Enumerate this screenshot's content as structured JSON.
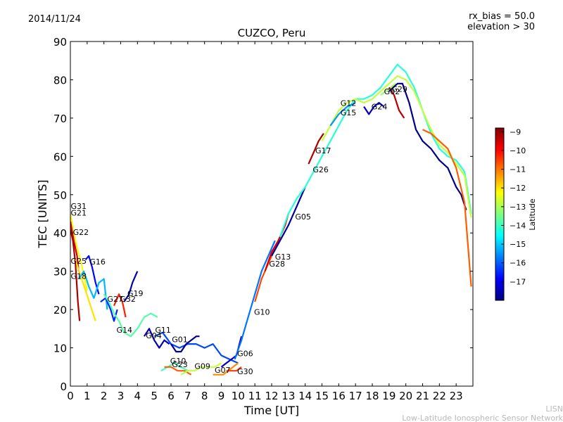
{
  "header": {
    "date": "2014/11/24",
    "title": "CUZCO, Peru",
    "info_line1": "rx_bias = 50.0",
    "info_line2": "elevation > 30"
  },
  "footer": {
    "short": "LISN",
    "long": "Low-Latitude Ionospheric Sensor Network"
  },
  "chart_data": {
    "type": "line",
    "title": "CUZCO, Peru",
    "xlabel": "Time [UT]",
    "ylabel": "TEC [UNITS]",
    "xlim": [
      0,
      24
    ],
    "ylim": [
      0,
      90
    ],
    "xticks": [
      "0",
      "1",
      "2",
      "3",
      "4",
      "5",
      "6",
      "7",
      "8",
      "9",
      "10",
      "11",
      "12",
      "13",
      "14",
      "15",
      "16",
      "17",
      "18",
      "19",
      "20",
      "21",
      "22",
      "23"
    ],
    "yticks": [
      "0",
      "10",
      "20",
      "30",
      "40",
      "50",
      "60",
      "70",
      "80",
      "90"
    ],
    "grid": false,
    "colorbar": {
      "label": "Latitude",
      "ticks": [
        "-9",
        "-10",
        "-11",
        "-12",
        "-13",
        "-14",
        "-15",
        "-16",
        "-17"
      ],
      "range": [
        -18,
        -8.8
      ],
      "colors": [
        "#00007f",
        "#0000ff",
        "#007fff",
        "#00ffff",
        "#7fff7f",
        "#ffff00",
        "#ff7f00",
        "#ff0000",
        "#7f0000"
      ]
    },
    "series": [
      {
        "name": "G31",
        "label_x": 0.02,
        "label_y": 46.3,
        "lat": -12.2,
        "x": [
          0.0,
          0.2,
          0.4,
          0.6,
          0.8,
          1.0
        ],
        "y": [
          45,
          40,
          36,
          33,
          29,
          25
        ]
      },
      {
        "name": "G21",
        "label_x": 0.02,
        "label_y": 44.5,
        "lat": -9.5,
        "x": [
          0.0,
          0.2,
          0.4,
          0.5
        ],
        "y": [
          43,
          38,
          34,
          30
        ]
      },
      {
        "name": "G22",
        "label_x": 0.15,
        "label_y": 39.5,
        "lat": -9.2,
        "x": [
          0.0,
          0.15,
          0.3,
          0.45,
          0.55
        ],
        "y": [
          41,
          38,
          32,
          22,
          17
        ]
      },
      {
        "name": "G25",
        "label_x": 0.02,
        "label_y": 32.0,
        "lat": -12.0,
        "x": [
          0.3,
          0.6,
          0.9,
          1.2,
          1.5
        ],
        "y": [
          33,
          29,
          25,
          21,
          17
        ]
      },
      {
        "name": "G16",
        "label_x": 1.15,
        "label_y": 31.8,
        "lat": -16.8,
        "x": [
          0.9,
          1.1,
          1.3,
          1.5,
          1.7
        ],
        "y": [
          33,
          34,
          31,
          27,
          24
        ]
      },
      {
        "name": "G18",
        "label_x": 0.02,
        "label_y": 28.0,
        "lat": -15.2,
        "x": [
          0.5,
          0.8,
          1.1,
          1.4,
          1.7,
          2.0,
          2.2
        ],
        "y": [
          28,
          30,
          26,
          23,
          27,
          28,
          20
        ]
      },
      {
        "name": "G27",
        "label_x": 2.2,
        "label_y": 22.0,
        "lat": -16.5,
        "x": [
          1.8,
          2.1,
          2.4,
          2.6,
          2.8
        ],
        "y": [
          22,
          23,
          20,
          17,
          20
        ]
      },
      {
        "name": "G32",
        "label_x": 2.95,
        "label_y": 22.0,
        "lat": -10.2,
        "x": [
          2.6,
          2.9,
          3.1,
          3.3
        ],
        "y": [
          21,
          24,
          22,
          18
        ]
      },
      {
        "name": "G19",
        "label_x": 3.4,
        "label_y": 23.5,
        "lat": -17.6,
        "x": [
          3.2,
          3.5,
          3.7,
          3.9,
          4.0
        ],
        "y": [
          22,
          24,
          27,
          29,
          30
        ]
      },
      {
        "name": "G14",
        "label_x": 2.75,
        "label_y": 14.0,
        "lat": -13.8,
        "x": [
          2.0,
          2.3,
          2.6,
          2.9,
          3.2,
          3.6,
          4.0,
          4.4,
          4.8,
          5.2
        ],
        "y": [
          24,
          22,
          19,
          17,
          14,
          13,
          15,
          18,
          19,
          18
        ]
      },
      {
        "name": "G04",
        "label_x": 4.5,
        "label_y": 12.5,
        "lat": -17.5,
        "x": [
          4.4,
          4.7,
          5.0,
          5.3,
          5.6,
          5.9
        ],
        "y": [
          13,
          15,
          12,
          10,
          12,
          11
        ]
      },
      {
        "name": "G11",
        "label_x": 5.05,
        "label_y": 14.0,
        "lat": -16.2,
        "x": [
          5.0,
          5.5,
          6.0,
          6.5,
          7.0,
          7.5,
          8.0,
          8.5,
          9.0,
          9.5,
          10.0
        ],
        "y": [
          13,
          14,
          11,
          10,
          11,
          11,
          10,
          11,
          8,
          7,
          6
        ]
      },
      {
        "name": "G01",
        "label_x": 6.05,
        "label_y": 11.5,
        "lat": -17.8,
        "x": [
          6.0,
          6.3,
          6.6,
          6.9,
          7.2,
          7.5,
          7.7
        ],
        "y": [
          11,
          9,
          9,
          11,
          12,
          13,
          13
        ]
      },
      {
        "name": "G10",
        "label_x": 5.95,
        "label_y": 5.9,
        "lat": -14.0,
        "x": [
          5.4,
          5.8,
          6.2,
          6.6,
          7.0
        ],
        "y": [
          4,
          5,
          6,
          5,
          4
        ]
      },
      {
        "name": "G23",
        "label_x": 6.05,
        "label_y": 5.0,
        "lat": -10.8,
        "x": [
          5.6,
          6.0,
          6.4,
          6.8,
          7.2
        ],
        "y": [
          5,
          5,
          4,
          4,
          3
        ]
      },
      {
        "name": "G09",
        "label_x": 7.4,
        "label_y": 4.5,
        "lat": -12.8,
        "x": [
          6.6,
          7.0,
          7.4,
          7.8,
          8.2,
          8.6,
          9.0
        ],
        "y": [
          3,
          4,
          4,
          5,
          5,
          5,
          6
        ]
      },
      {
        "name": "G07",
        "label_x": 8.6,
        "label_y": 3.5,
        "lat": -11.2,
        "x": [
          8.5,
          8.8,
          9.1,
          9.4,
          9.7,
          10.0
        ],
        "y": [
          3,
          3,
          3,
          4,
          5,
          6
        ]
      },
      {
        "name": "G30",
        "label_x": 9.95,
        "label_y": 3.1,
        "lat": -10.5,
        "x": [
          9.3,
          9.6,
          9.9,
          10.2
        ],
        "y": [
          4,
          4,
          4,
          5
        ]
      },
      {
        "name": "G06",
        "label_x": 9.95,
        "label_y": 7.8,
        "lat": -17.3,
        "x": [
          9.0,
          9.3,
          9.6,
          9.9,
          10.2
        ],
        "y": [
          5,
          6,
          7,
          8,
          13
        ]
      },
      {
        "name": "G10",
        "label_x": 10.95,
        "label_y": 18.6,
        "lat": -15.8,
        "x": [
          9.8,
          10.2,
          10.6,
          11.0,
          11.4,
          11.8,
          12.2
        ],
        "y": [
          7,
          12,
          18,
          24,
          30,
          34,
          38
        ]
      },
      {
        "name": "G28",
        "label_x": 11.85,
        "label_y": 31.2,
        "lat": -10.6,
        "x": [
          11.0,
          11.4,
          11.8,
          12.2,
          12.5
        ],
        "y": [
          22,
          28,
          32,
          36,
          39
        ]
      },
      {
        "name": "G13",
        "label_x": 12.2,
        "label_y": 33.1,
        "lat": -9.6,
        "x": [
          11.6,
          12.0,
          12.4,
          12.8,
          13.0
        ],
        "y": [
          30,
          35,
          38,
          42,
          45
        ]
      },
      {
        "name": "G05",
        "label_x": 13.4,
        "label_y": 43.5,
        "lat": -17.7,
        "x": [
          12.0,
          12.5,
          13.0,
          13.5,
          14.0
        ],
        "y": [
          34,
          38,
          42,
          47,
          52
        ]
      },
      {
        "name": "G26",
        "label_x": 14.45,
        "label_y": 55.8,
        "lat": -14.2,
        "x": [
          12.5,
          13.0,
          13.5,
          14.0,
          14.5,
          15.0,
          15.5,
          16.0,
          16.5,
          17.0,
          17.5,
          18.0,
          18.5,
          19.0,
          19.5,
          20.0,
          20.5,
          21.0,
          21.5,
          22.0,
          22.5,
          23.0,
          23.5,
          23.9
        ],
        "y": [
          39,
          45,
          49,
          52,
          56,
          60,
          64,
          68,
          72,
          75,
          75,
          76,
          78,
          81,
          84,
          82,
          78,
          72,
          66,
          62,
          60,
          59,
          56,
          45
        ]
      },
      {
        "name": "G17",
        "label_x": 14.6,
        "label_y": 60.8,
        "lat": -9.2,
        "x": [
          14.2,
          14.5,
          14.8,
          15.1
        ],
        "y": [
          58,
          61,
          64,
          66
        ]
      },
      {
        "name": "G12",
        "label_x": 16.1,
        "label_y": 73.2,
        "lat": -12.8,
        "x": [
          15.0,
          15.5,
          16.0,
          16.5,
          17.0,
          17.5,
          18.0,
          18.5,
          19.0,
          19.5,
          20.0,
          20.5,
          21.0,
          21.5,
          22.0,
          22.5,
          23.0,
          23.5,
          23.9
        ],
        "y": [
          64,
          68,
          72,
          74,
          75,
          74,
          75,
          77,
          79,
          81,
          80,
          77,
          72,
          67,
          63,
          61,
          58,
          55,
          44
        ]
      },
      {
        "name": "G15",
        "label_x": 16.1,
        "label_y": 70.7,
        "lat": -15.5,
        "x": [
          15.5,
          16.0,
          16.5,
          17.0
        ],
        "y": [
          68,
          71,
          73,
          74
        ]
      },
      {
        "name": "G24",
        "label_x": 17.95,
        "label_y": 72.3,
        "lat": -17.4,
        "x": [
          17.5,
          17.8,
          18.1,
          18.4,
          18.7
        ],
        "y": [
          73,
          71,
          73,
          74,
          73
        ]
      },
      {
        "name": "G02",
        "label_x": 18.7,
        "label_y": 76.2,
        "lat": -13.2,
        "x": [
          18.5,
          18.8,
          19.1,
          19.4
        ],
        "y": [
          76,
          77,
          78,
          79
        ]
      },
      {
        "name": "G29",
        "label_x": 19.15,
        "label_y": 76.9,
        "lat": -9.3,
        "x": [
          19.0,
          19.3,
          19.6,
          19.9
        ],
        "y": [
          78,
          76,
          72,
          70
        ]
      },
      {
        "name": "",
        "label_x": null,
        "label_y": null,
        "lat": -17.9,
        "x": [
          19.0,
          19.5,
          19.8,
          20.2,
          20.6,
          21.0,
          21.5,
          22.0,
          22.5,
          23.0,
          23.3,
          23.6
        ],
        "y": [
          77,
          79,
          79,
          74,
          67,
          64,
          62,
          59,
          57,
          52,
          50,
          46
        ]
      },
      {
        "name": "",
        "label_x": null,
        "label_y": null,
        "lat": -10.8,
        "x": [
          21.0,
          21.5,
          22.0,
          22.5,
          23.0,
          23.5,
          23.9
        ],
        "y": [
          67,
          66,
          64,
          62,
          57,
          48,
          26
        ]
      }
    ]
  }
}
